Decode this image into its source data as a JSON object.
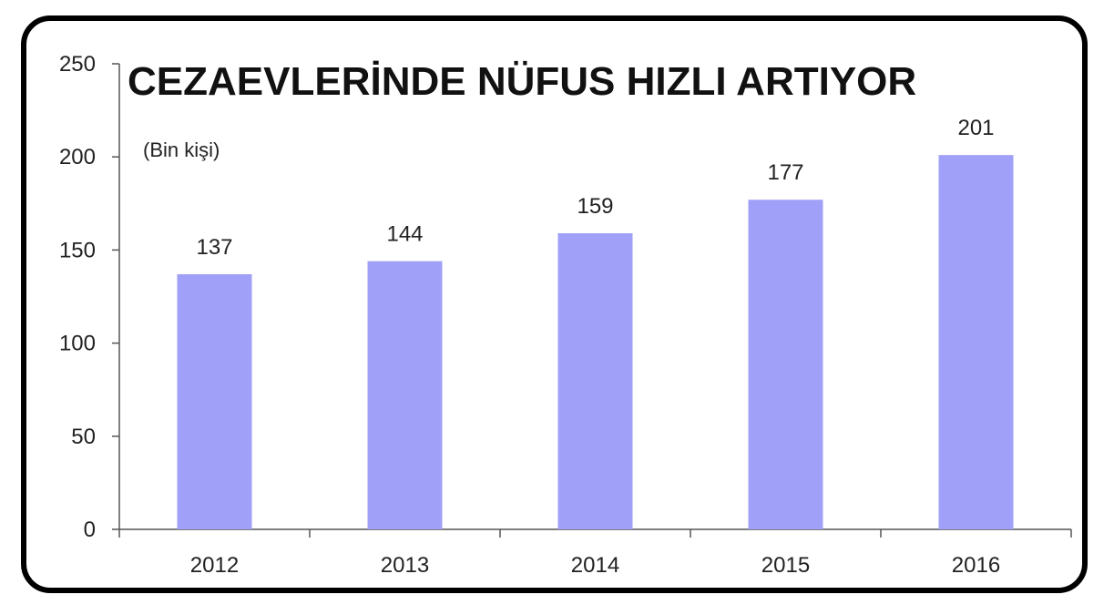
{
  "chart_data": {
    "type": "bar",
    "title": "CEZAEVLERİNDE NÜFUS HIZLI ARTIYOR",
    "unit_label": "(Bin kişi)",
    "categories": [
      "2012",
      "2013",
      "2014",
      "2015",
      "2016"
    ],
    "values": [
      137,
      144,
      159,
      177,
      201
    ],
    "data_labels": [
      "137",
      "144",
      "159",
      "177",
      "201"
    ],
    "ylim": [
      0,
      250
    ],
    "yticks": [
      0,
      50,
      100,
      150,
      200,
      250
    ],
    "grid": false,
    "legend": "none",
    "colors": {
      "bar": "#a0a0f8",
      "axis": "#555555",
      "frame": "#000000"
    }
  }
}
